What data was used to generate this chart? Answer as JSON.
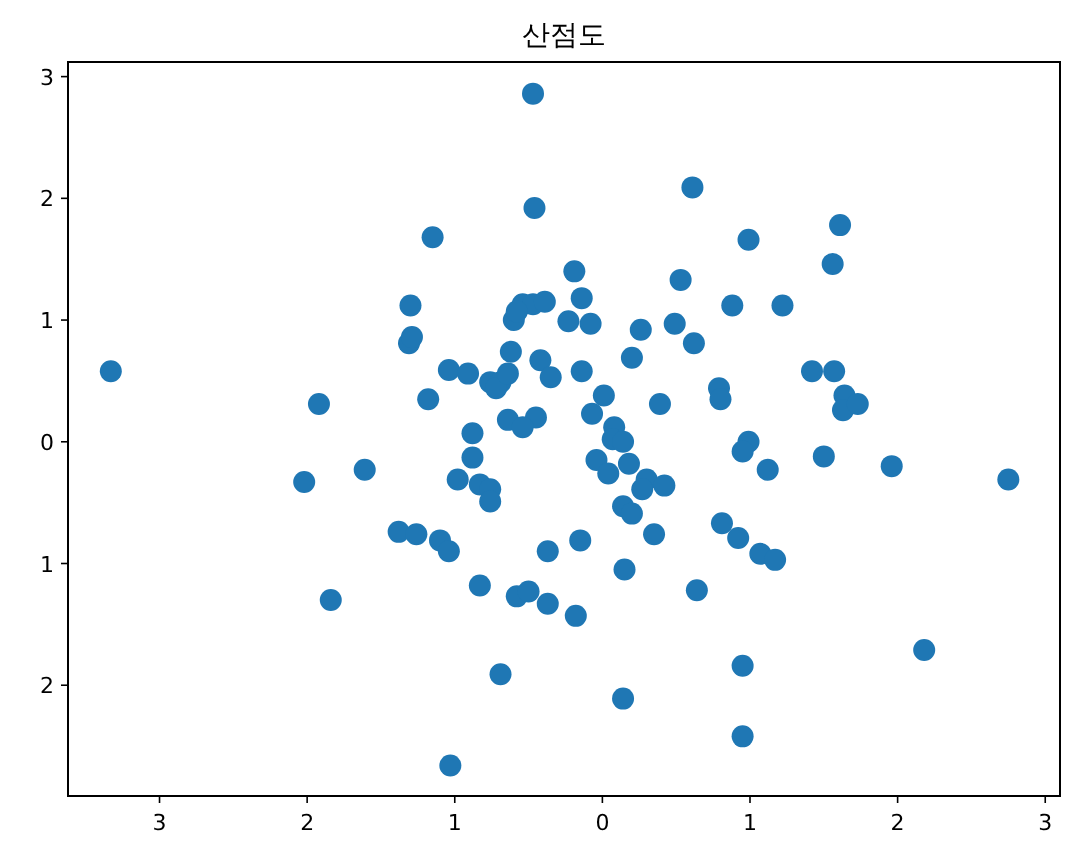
{
  "chart_data": {
    "type": "scatter",
    "title": "산점도",
    "color": "#1f77b4",
    "marker": "circle",
    "x": [
      -0.47,
      -0.46,
      -1.15,
      0.61,
      0.99,
      1.61,
      1.56,
      -1.3,
      -0.19,
      -0.14,
      -0.23,
      -0.08,
      0.53,
      0.88,
      1.22,
      0.49,
      0.26,
      0.62,
      -0.54,
      -0.47,
      -0.39,
      -0.6,
      -0.58,
      -1.31,
      -1.29,
      -0.62,
      -0.42,
      -0.35,
      -1.04,
      -0.91,
      -0.76,
      -0.69,
      -0.72,
      -0.64,
      -3.33,
      -1.18,
      -1.92,
      -0.14,
      0.01,
      0.2,
      0.39,
      0.79,
      0.8,
      1.42,
      1.57,
      1.64,
      1.63,
      1.73,
      -0.64,
      -0.45,
      -0.54,
      -0.88,
      -0.07,
      0.08,
      0.07,
      0.14,
      -0.04,
      0.04,
      -0.88,
      -0.98,
      -0.83,
      -0.76,
      -0.76,
      -1.61,
      -2.02,
      0.99,
      0.95,
      1.12,
      1.5,
      1.96,
      2.75,
      0.18,
      0.3,
      0.42,
      0.27,
      0.14,
      0.2,
      0.35,
      -0.15,
      -0.37,
      -1.38,
      -1.26,
      -1.1,
      -1.04,
      0.81,
      0.92,
      1.07,
      1.17,
      0.15,
      0.64,
      -0.83,
      -0.58,
      -0.5,
      -0.37,
      -1.84,
      -0.18,
      2.18,
      -0.69,
      0.95,
      0.14,
      0.95,
      -1.03
    ],
    "values": [
      2.86,
      1.92,
      1.68,
      2.09,
      1.66,
      1.78,
      1.46,
      1.12,
      1.4,
      1.18,
      0.99,
      0.97,
      1.33,
      1.12,
      1.12,
      0.97,
      0.92,
      0.81,
      1.13,
      1.13,
      1.15,
      1.0,
      1.07,
      0.81,
      0.86,
      0.74,
      0.67,
      0.53,
      0.59,
      0.56,
      0.49,
      0.49,
      0.44,
      0.56,
      0.58,
      0.35,
      0.31,
      0.58,
      0.38,
      0.69,
      0.31,
      0.44,
      0.35,
      0.58,
      0.58,
      0.38,
      0.26,
      0.31,
      0.18,
      0.2,
      0.12,
      0.07,
      0.23,
      0.12,
      0.02,
      0.0,
      -0.15,
      -0.26,
      -0.13,
      -0.31,
      -0.35,
      -0.39,
      -0.49,
      -0.23,
      -0.33,
      0.0,
      -0.08,
      -0.23,
      -0.12,
      -0.2,
      -0.31,
      -0.18,
      -0.31,
      -0.36,
      -0.39,
      -0.53,
      -0.59,
      -0.76,
      -0.81,
      -0.9,
      -0.74,
      -0.76,
      -0.81,
      -0.9,
      -0.67,
      -0.79,
      -0.92,
      -0.97,
      -1.05,
      -1.22,
      -1.18,
      -1.27,
      -1.23,
      -1.33,
      -1.3,
      -1.43,
      -1.71,
      -1.91,
      -1.84,
      -2.11,
      -2.42,
      -2.66
    ],
    "xlim": [
      -3.62,
      3.1
    ],
    "ylim": [
      -2.91,
      3.12
    ],
    "xticks": [
      {
        "value": -3,
        "label": "3"
      },
      {
        "value": -2,
        "label": "2"
      },
      {
        "value": -1,
        "label": "1"
      },
      0,
      1,
      2,
      3
    ],
    "yticks": [
      {
        "value": -2,
        "label": "2"
      },
      {
        "value": -1,
        "label": "1"
      },
      0,
      1,
      2,
      3
    ]
  }
}
